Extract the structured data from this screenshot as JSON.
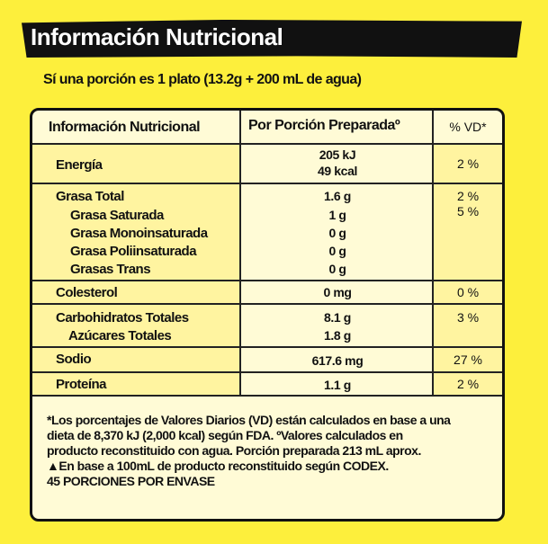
{
  "title": "Información Nutricional",
  "subtitle": "Sí una porción es 1 plato (13.2g + 200 mL de agua)",
  "header": {
    "col1": "Información Nutricional",
    "col2": "Por Porción Preparadaº",
    "col3": "% VD*"
  },
  "rows": {
    "energia": {
      "label": "Energía",
      "value1": "205 kJ",
      "value2": "49 kcal",
      "vd": "2 %"
    },
    "grasa_total": {
      "label": "Grasa Total",
      "value": "1.6 g",
      "vd": "2 %"
    },
    "grasa_saturada": {
      "label": "Grasa Saturada",
      "value": "1 g",
      "vd": "5 %"
    },
    "grasa_mono": {
      "label": "Grasa Monoinsaturada",
      "value": "0 g"
    },
    "grasa_poli": {
      "label": "Grasa Poliinsaturada",
      "value": "0 g"
    },
    "grasas_trans": {
      "label": "Grasas Trans",
      "value": "0 g"
    },
    "colesterol": {
      "label": "Colesterol",
      "value": "0 mg",
      "vd": "0 %"
    },
    "carbohidratos": {
      "label": "Carbohidratos Totales",
      "value": "8.1 g",
      "vd": "3 %"
    },
    "azucares": {
      "label": "Azúcares Totales",
      "value": "1.8 g"
    },
    "sodio": {
      "label": "Sodio",
      "value": "617.6 mg",
      "vd": "27 %"
    },
    "proteina": {
      "label": "Proteína",
      "value": "1.1 g",
      "vd": "2 %"
    }
  },
  "footnote": {
    "line1": "*Los porcentajes de Valores Diarios (VD) están calculados en base a una",
    "line2": "dieta de 8,370 kJ (2,000 kcal) según FDA. ºValores calculados en",
    "line3": "producto reconstituido con agua. Porción preparada 213 mL aprox.",
    "line4": "▲En base a 100mL de producto reconstituido según CODEX.",
    "line5": "45 PORCIONES POR ENVASE"
  }
}
